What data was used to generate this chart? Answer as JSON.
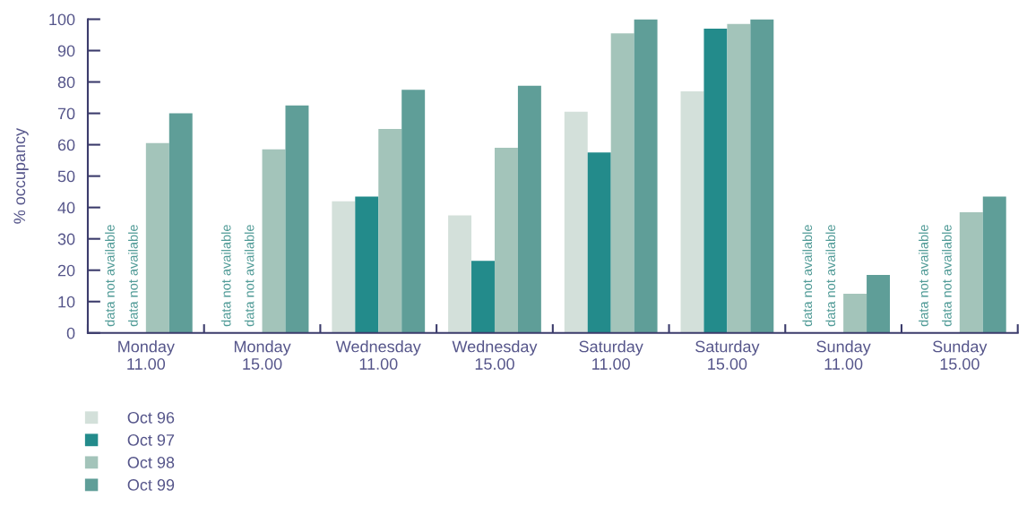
{
  "chart_data": {
    "type": "bar",
    "ylabel": "% occupancy",
    "categories": [
      "Monday\n11.00",
      "Monday\n15.00",
      "Wednesday\n11.00",
      "Wednesday\n15.00",
      "Saturday\n11.00",
      "Saturday\n15.00",
      "Sunday\n11.00",
      "Sunday\n15.00"
    ],
    "series": [
      {
        "name": "Oct 96",
        "color": "#d3e0da",
        "values": [
          null,
          null,
          42,
          37.5,
          70.5,
          77,
          null,
          null
        ],
        "value_labels": [
          "data not available",
          "data not available",
          null,
          null,
          null,
          null,
          "data not available",
          "data not available"
        ]
      },
      {
        "name": "Oct 97",
        "color": "#238b8b",
        "values": [
          null,
          null,
          43.5,
          23,
          57.5,
          97,
          null,
          null
        ],
        "value_labels": [
          "data not available",
          "data not available",
          null,
          null,
          null,
          null,
          "data not available",
          "data not available"
        ]
      },
      {
        "name": "Oct 98",
        "color": "#a3c4ba",
        "values": [
          60.5,
          58.5,
          65,
          59,
          95.5,
          98.5,
          12.5,
          38.5
        ]
      },
      {
        "name": "Oct 99",
        "color": "#5f9e98",
        "values": [
          70,
          72.5,
          77.5,
          78.8,
          100,
          100,
          18.5,
          43.5
        ]
      }
    ],
    "ylim": [
      0,
      100
    ],
    "yticks": [
      0,
      10,
      20,
      30,
      40,
      50,
      60,
      70,
      80,
      90,
      100
    ],
    "grid": false,
    "legend": "bottom left"
  }
}
